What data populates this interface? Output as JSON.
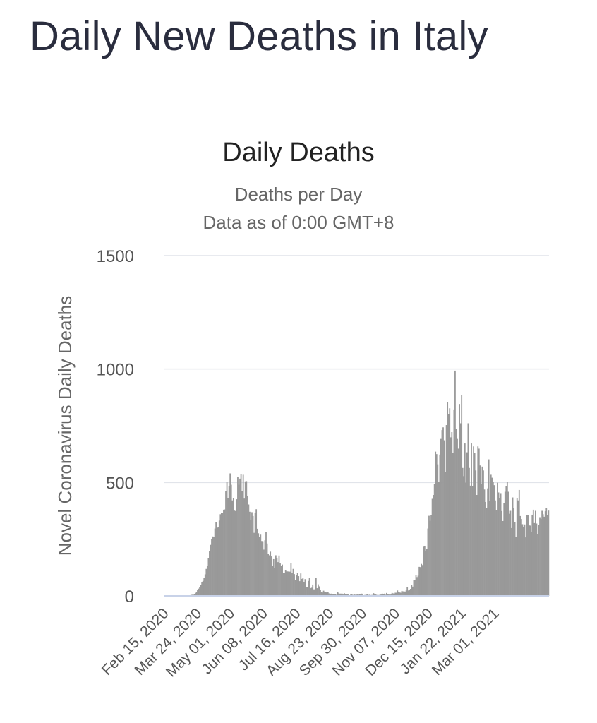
{
  "page": {
    "title": "Daily New Deaths in Italy"
  },
  "chart_data": {
    "type": "bar",
    "title": "Daily Deaths",
    "subtitle_lines": [
      "Deaths per Day",
      "Data as of 0:00 GMT+8"
    ],
    "ylabel": "Novel Coronavirus Daily Deaths",
    "xlabel": "",
    "ylim": [
      0,
      1500
    ],
    "y_ticks": [
      0,
      500,
      1000,
      1500
    ],
    "x_ticks": [
      "Feb 15, 2020",
      "Mar 24, 2020",
      "May 01, 2020",
      "Jun 08, 2020",
      "Jul 16, 2020",
      "Aug 23, 2020",
      "Sep 30, 2020",
      "Nov 07, 2020",
      "Dec 15, 2020",
      "Jan 22, 2021",
      "Mar 01, 2021"
    ],
    "x_start": "Feb 15, 2020",
    "x_end": "Mar 22, 2021",
    "bar_color": "#999999",
    "grid": true,
    "legend": "none",
    "series": [
      {
        "name": "",
        "values": [
          0,
          0,
          0,
          0,
          0,
          0,
          1,
          2,
          3,
          4,
          5,
          4,
          7,
          12,
          18,
          25,
          32,
          39,
          48,
          61,
          66,
          78,
          95,
          119,
          132,
          167,
          196,
          225,
          252,
          262,
          260,
          297,
          325,
          300,
          304,
          332,
          360,
          367,
          366,
          380,
          381,
          461,
          504,
          431,
          484,
          540,
          490,
          421,
          432,
          376,
          374,
          426,
          525,
          490,
          517,
          537,
          461,
          534,
          429,
          505,
          506,
          442,
          403,
          371,
          336,
          369,
          352,
          278,
          365,
          382,
          296,
          276,
          260,
          270,
          242,
          241,
          204,
          245,
          282,
          231,
          185,
          179,
          195,
          174,
          133,
          162,
          124,
          179,
          165,
          149,
          178,
          143,
          133,
          138,
          101,
          101,
          113,
          108,
          108,
          107,
          107,
          145,
          100,
          119,
          96,
          69,
          91,
          100,
          87,
          65,
          99,
          75,
          80,
          62,
          74,
          40,
          40,
          66,
          79,
          34,
          36,
          50,
          29,
          29,
          79,
          34,
          51,
          42,
          25,
          18,
          15,
          23,
          18,
          17,
          15,
          17,
          11,
          7,
          10,
          8,
          9,
          8,
          8,
          4,
          16,
          11,
          10,
          10,
          10,
          6,
          12,
          9,
          8,
          8,
          6,
          1,
          6,
          9,
          4,
          7,
          5,
          5,
          6,
          5,
          9,
          7,
          10,
          6,
          3,
          4,
          4,
          7,
          3,
          5,
          3,
          4,
          4,
          12,
          7,
          6,
          4,
          3,
          4,
          5,
          6,
          10,
          7,
          10,
          5,
          13,
          9,
          6,
          4,
          9,
          13,
          11,
          10,
          14,
          14,
          24,
          17,
          15,
          14,
          22,
          20,
          20,
          19,
          24,
          39,
          24,
          28,
          31,
          47,
          41,
          69,
          69,
          91,
          83,
          89,
          128,
          127,
          141,
          136,
          217,
          221,
          199,
          207,
          297,
          353,
          331,
          356,
          428,
          445,
          492,
          636,
          625,
          580,
          504,
          623,
          692,
          731,
          743,
          686,
          546,
          753,
          853,
          802,
          827,
          699,
          722,
          630,
          822,
          993,
          736,
          692,
          649,
          846,
          761,
          887,
          564,
          528,
          672,
          499,
          633,
          761,
          564,
          486,
          672,
          484,
          659,
          631,
          553,
          445,
          659,
          649,
          575,
          492,
          570,
          553,
          469,
          414,
          388,
          474,
          602,
          420,
          534,
          521,
          501,
          488,
          421,
          377,
          499,
          456,
          432,
          453,
          374,
          330,
          408,
          459,
          484,
          503,
          459,
          362,
          375,
          299,
          434,
          386,
          325,
          261,
          432,
          421,
          467,
          352,
          339,
          316,
          305,
          315,
          258,
          356,
          356,
          311,
          310,
          283,
          358,
          380,
          321,
          375,
          319,
          271,
          313,
          347,
          339,
          375,
          360,
          349,
          373,
          386,
          355,
          376
        ]
      }
    ]
  }
}
